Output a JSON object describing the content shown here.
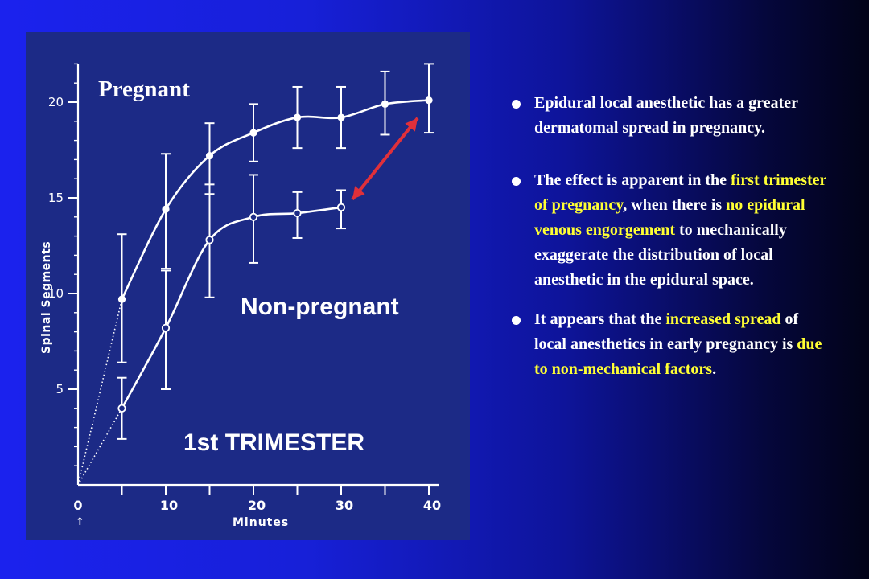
{
  "slide": {
    "colors": {
      "highlight": "#ffff33",
      "text": "#ffffff",
      "arrow": "#e0303a"
    }
  },
  "chart_data": {
    "type": "line",
    "xlabel": "Minutes",
    "ylabel": "Spinal Segments",
    "x_ticks": [
      0,
      10,
      20,
      30,
      40
    ],
    "y_ticks": [
      5,
      10,
      15,
      20
    ],
    "xlim": [
      0,
      40
    ],
    "ylim": [
      0,
      22
    ],
    "annotations": [
      "Pregnant",
      "Non-pregnant",
      "1st TRIMESTER"
    ],
    "series": [
      {
        "name": "Pregnant",
        "marker": "filled",
        "x": [
          5,
          10,
          15,
          20,
          25,
          30,
          35,
          40
        ],
        "y": [
          9.7,
          14.4,
          17.2,
          18.4,
          19.2,
          19.2,
          19.9,
          20.1
        ],
        "err_low": [
          6.4,
          11.3,
          15.2,
          16.9,
          17.6,
          17.6,
          18.3,
          18.4
        ],
        "err_high": [
          13.1,
          17.3,
          18.9,
          19.9,
          20.8,
          20.8,
          21.6,
          22.0
        ]
      },
      {
        "name": "Non-pregnant",
        "marker": "open",
        "x": [
          5,
          10,
          15,
          20,
          25,
          30
        ],
        "y": [
          4.0,
          8.2,
          12.8,
          14.0,
          14.2,
          14.5
        ],
        "err_low": [
          2.4,
          5.0,
          9.8,
          11.6,
          12.9,
          13.4
        ],
        "err_high": [
          5.6,
          11.2,
          15.7,
          16.2,
          15.3,
          15.4
        ]
      }
    ],
    "extrapolation": [
      {
        "from": [
          0,
          0
        ],
        "to": [
          5,
          9.7
        ]
      },
      {
        "from": [
          0,
          0
        ],
        "to": [
          5,
          4.0
        ]
      }
    ],
    "arrow": {
      "from": [
        30,
        14.5
      ],
      "to": [
        40,
        19.5
      ]
    }
  },
  "bullets": [
    {
      "segments": [
        {
          "text": "Epidural local anesthetic has a greater dermatomal spread in pregnancy.",
          "highlight": false
        }
      ]
    },
    {
      "segments": [
        {
          "text": "The effect is apparent in the ",
          "highlight": false
        },
        {
          "text": "first trimester of pregnancy",
          "highlight": true
        },
        {
          "text": ", when there is ",
          "highlight": false
        },
        {
          "text": "no epidural venous engorgement",
          "highlight": true
        },
        {
          "text": " to mechanically exaggerate the distribution of local anesthetic in the epidural space.",
          "highlight": false
        }
      ]
    },
    {
      "segments": [
        {
          "text": "It appears that the ",
          "highlight": false
        },
        {
          "text": "increased spread",
          "highlight": true
        },
        {
          "text": " of local anesthetics in early  pregnancy is ",
          "highlight": false
        },
        {
          "text": "due to non-mechanical factors",
          "highlight": true
        },
        {
          "text": ".",
          "highlight": false
        }
      ]
    }
  ]
}
